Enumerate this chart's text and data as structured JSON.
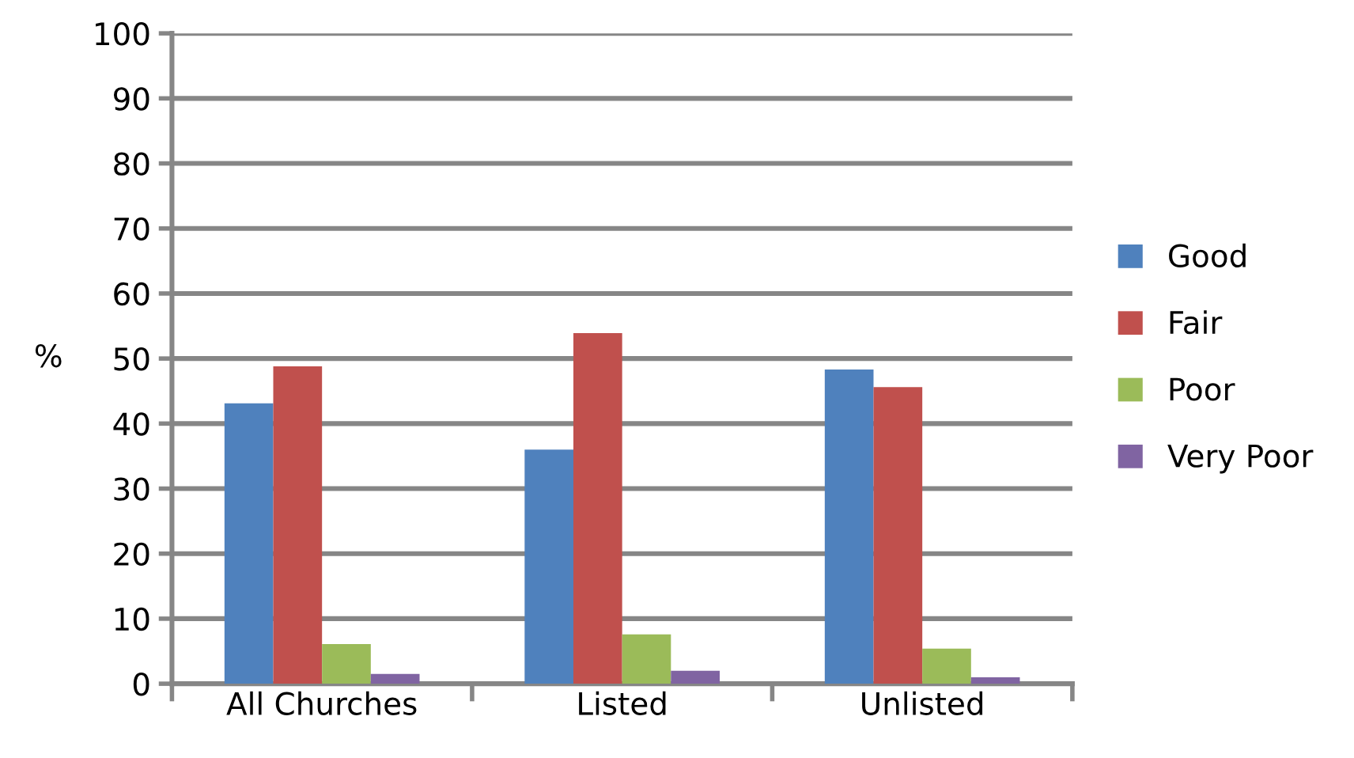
{
  "chart_data": {
    "type": "bar",
    "ylabel": "%",
    "categories": [
      "All Churches",
      "Listed",
      "Unlisted"
    ],
    "series": [
      {
        "name": "Good",
        "color": "#4f81bd",
        "values": [
          43.1,
          36.0,
          48.3
        ]
      },
      {
        "name": "Fair",
        "color": "#c0504d",
        "values": [
          48.8,
          53.9,
          45.6
        ]
      },
      {
        "name": "Poor",
        "color": "#9bbb59",
        "values": [
          6.1,
          7.6,
          5.4
        ]
      },
      {
        "name": "Very Poor",
        "color": "#8064a2",
        "values": [
          1.5,
          2.0,
          1.0
        ]
      }
    ],
    "ylim": [
      0,
      100
    ],
    "yticks": [
      0,
      10,
      20,
      30,
      40,
      50,
      60,
      70,
      80,
      90,
      100
    ],
    "grid": "y",
    "legend": "right"
  }
}
